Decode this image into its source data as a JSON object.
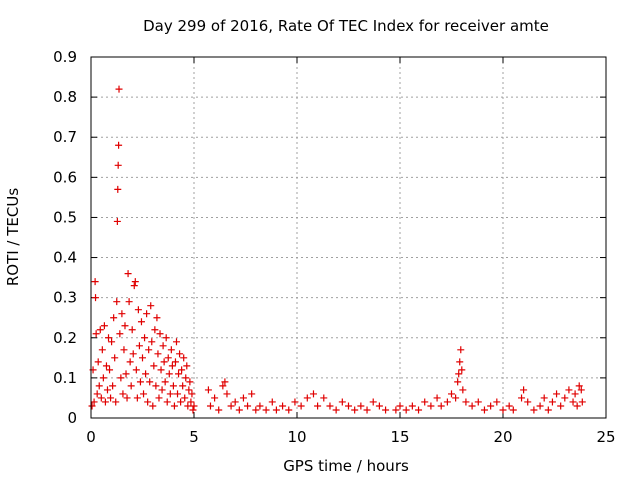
{
  "chart_data": {
    "type": "scatter",
    "title": "Day 299 of 2016, Rate Of TEC Index for receiver amte",
    "xlabel": "GPS time / hours",
    "ylabel": "ROTI / TECUs",
    "xlim": [
      0,
      25
    ],
    "ylim": [
      0,
      0.9
    ],
    "xticks": [
      "0",
      "5",
      "10",
      "15",
      "20",
      "25"
    ],
    "yticks": [
      "0",
      "0.1",
      "0.2",
      "0.3",
      "0.4",
      "0.5",
      "0.6",
      "0.7",
      "0.8",
      "0.9"
    ],
    "grid": true,
    "marker": "+",
    "color": "#e00000",
    "series": [
      {
        "name": "ROTI",
        "points": [
          [
            0.05,
            0.03
          ],
          [
            0.1,
            0.12
          ],
          [
            0.15,
            0.04
          ],
          [
            0.2,
            0.34
          ],
          [
            0.22,
            0.3
          ],
          [
            0.25,
            0.21
          ],
          [
            0.3,
            0.06
          ],
          [
            0.35,
            0.14
          ],
          [
            0.4,
            0.08
          ],
          [
            0.45,
            0.22
          ],
          [
            0.5,
            0.05
          ],
          [
            0.55,
            0.17
          ],
          [
            0.6,
            0.1
          ],
          [
            0.65,
            0.23
          ],
          [
            0.7,
            0.04
          ],
          [
            0.75,
            0.13
          ],
          [
            0.8,
            0.07
          ],
          [
            0.85,
            0.2
          ],
          [
            0.9,
            0.12
          ],
          [
            0.95,
            0.05
          ],
          [
            1.0,
            0.19
          ],
          [
            1.05,
            0.08
          ],
          [
            1.1,
            0.25
          ],
          [
            1.15,
            0.15
          ],
          [
            1.2,
            0.04
          ],
          [
            1.25,
            0.29
          ],
          [
            1.28,
            0.49
          ],
          [
            1.3,
            0.57
          ],
          [
            1.32,
            0.63
          ],
          [
            1.34,
            0.68
          ],
          [
            1.36,
            0.82
          ],
          [
            1.4,
            0.21
          ],
          [
            1.45,
            0.1
          ],
          [
            1.5,
            0.26
          ],
          [
            1.55,
            0.06
          ],
          [
            1.6,
            0.17
          ],
          [
            1.65,
            0.23
          ],
          [
            1.7,
            0.11
          ],
          [
            1.75,
            0.05
          ],
          [
            1.8,
            0.36
          ],
          [
            1.85,
            0.29
          ],
          [
            1.9,
            0.14
          ],
          [
            1.95,
            0.08
          ],
          [
            2.0,
            0.22
          ],
          [
            2.05,
            0.16
          ],
          [
            2.1,
            0.33
          ],
          [
            2.15,
            0.34
          ],
          [
            2.2,
            0.12
          ],
          [
            2.25,
            0.05
          ],
          [
            2.3,
            0.27
          ],
          [
            2.35,
            0.18
          ],
          [
            2.4,
            0.09
          ],
          [
            2.45,
            0.24
          ],
          [
            2.5,
            0.15
          ],
          [
            2.55,
            0.06
          ],
          [
            2.6,
            0.2
          ],
          [
            2.65,
            0.11
          ],
          [
            2.7,
            0.26
          ],
          [
            2.75,
            0.04
          ],
          [
            2.8,
            0.17
          ],
          [
            2.85,
            0.09
          ],
          [
            2.9,
            0.28
          ],
          [
            2.95,
            0.19
          ],
          [
            3.0,
            0.03
          ],
          [
            3.05,
            0.13
          ],
          [
            3.1,
            0.22
          ],
          [
            3.15,
            0.08
          ],
          [
            3.2,
            0.25
          ],
          [
            3.25,
            0.16
          ],
          [
            3.3,
            0.05
          ],
          [
            3.35,
            0.21
          ],
          [
            3.4,
            0.12
          ],
          [
            3.45,
            0.07
          ],
          [
            3.5,
            0.18
          ],
          [
            3.55,
            0.14
          ],
          [
            3.6,
            0.09
          ],
          [
            3.65,
            0.2
          ],
          [
            3.7,
            0.04
          ],
          [
            3.75,
            0.15
          ],
          [
            3.8,
            0.11
          ],
          [
            3.85,
            0.06
          ],
          [
            3.9,
            0.17
          ],
          [
            3.95,
            0.13
          ],
          [
            4.0,
            0.08
          ],
          [
            4.05,
            0.03
          ],
          [
            4.1,
            0.14
          ],
          [
            4.15,
            0.19
          ],
          [
            4.2,
            0.06
          ],
          [
            4.25,
            0.11
          ],
          [
            4.3,
            0.16
          ],
          [
            4.35,
            0.04
          ],
          [
            4.4,
            0.12
          ],
          [
            4.45,
            0.08
          ],
          [
            4.5,
            0.15
          ],
          [
            4.55,
            0.05
          ],
          [
            4.6,
            0.1
          ],
          [
            4.65,
            0.13
          ],
          [
            4.7,
            0.03
          ],
          [
            4.75,
            0.07
          ],
          [
            4.8,
            0.09
          ],
          [
            4.85,
            0.04
          ],
          [
            4.9,
            0.06
          ],
          [
            4.95,
            0.02
          ],
          [
            5.0,
            0.03
          ],
          [
            5.7,
            0.07
          ],
          [
            5.8,
            0.03
          ],
          [
            6.0,
            0.05
          ],
          [
            6.2,
            0.02
          ],
          [
            6.4,
            0.08
          ],
          [
            6.5,
            0.09
          ],
          [
            6.6,
            0.06
          ],
          [
            6.8,
            0.03
          ],
          [
            7.0,
            0.04
          ],
          [
            7.2,
            0.02
          ],
          [
            7.4,
            0.05
          ],
          [
            7.6,
            0.03
          ],
          [
            7.8,
            0.06
          ],
          [
            8.0,
            0.02
          ],
          [
            8.2,
            0.03
          ],
          [
            8.5,
            0.02
          ],
          [
            8.8,
            0.04
          ],
          [
            9.0,
            0.02
          ],
          [
            9.3,
            0.03
          ],
          [
            9.6,
            0.02
          ],
          [
            9.9,
            0.04
          ],
          [
            10.2,
            0.03
          ],
          [
            10.5,
            0.05
          ],
          [
            10.8,
            0.06
          ],
          [
            11.0,
            0.03
          ],
          [
            11.3,
            0.05
          ],
          [
            11.6,
            0.03
          ],
          [
            11.9,
            0.02
          ],
          [
            12.2,
            0.04
          ],
          [
            12.5,
            0.03
          ],
          [
            12.8,
            0.02
          ],
          [
            13.1,
            0.03
          ],
          [
            13.4,
            0.02
          ],
          [
            13.7,
            0.04
          ],
          [
            14.0,
            0.03
          ],
          [
            14.3,
            0.02
          ],
          [
            14.8,
            0.02
          ],
          [
            15.0,
            0.03
          ],
          [
            15.3,
            0.02
          ],
          [
            15.6,
            0.03
          ],
          [
            15.9,
            0.02
          ],
          [
            16.2,
            0.04
          ],
          [
            16.5,
            0.03
          ],
          [
            16.8,
            0.05
          ],
          [
            17.0,
            0.03
          ],
          [
            17.3,
            0.04
          ],
          [
            17.5,
            0.06
          ],
          [
            17.7,
            0.05
          ],
          [
            17.8,
            0.09
          ],
          [
            17.85,
            0.11
          ],
          [
            17.9,
            0.14
          ],
          [
            17.95,
            0.17
          ],
          [
            18.0,
            0.12
          ],
          [
            18.05,
            0.07
          ],
          [
            18.2,
            0.04
          ],
          [
            18.5,
            0.03
          ],
          [
            18.8,
            0.04
          ],
          [
            19.1,
            0.02
          ],
          [
            19.4,
            0.03
          ],
          [
            19.7,
            0.04
          ],
          [
            20.0,
            0.02
          ],
          [
            20.3,
            0.03
          ],
          [
            20.5,
            0.02
          ],
          [
            20.9,
            0.05
          ],
          [
            21.0,
            0.07
          ],
          [
            21.2,
            0.04
          ],
          [
            21.5,
            0.02
          ],
          [
            21.8,
            0.03
          ],
          [
            22.0,
            0.05
          ],
          [
            22.2,
            0.02
          ],
          [
            22.4,
            0.04
          ],
          [
            22.6,
            0.06
          ],
          [
            22.8,
            0.03
          ],
          [
            23.0,
            0.05
          ],
          [
            23.2,
            0.07
          ],
          [
            23.4,
            0.04
          ],
          [
            23.5,
            0.06
          ],
          [
            23.6,
            0.03
          ],
          [
            23.7,
            0.08
          ],
          [
            23.8,
            0.07
          ],
          [
            23.85,
            0.04
          ]
        ]
      }
    ]
  }
}
